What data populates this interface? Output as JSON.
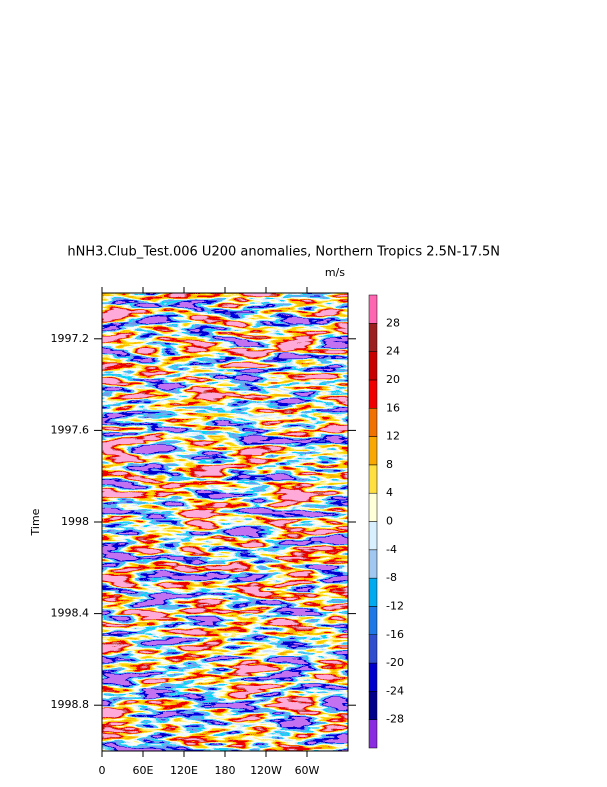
{
  "chart_data": {
    "type": "hovmoller",
    "title": "hNH3.Club_Test.006 U200 anomalies, Northern Tropics 2.5N-17.5N",
    "units": "m/s",
    "y_label": "Time",
    "xlim": [
      0,
      360
    ],
    "xticks": [
      0,
      {
        "value": 60,
        "label": "60E"
      },
      {
        "value": 120,
        "label": "120E"
      },
      {
        "value": 180,
        "label": "180"
      },
      {
        "value": 240,
        "label": "120W"
      },
      {
        "value": 300,
        "label": "60W"
      }
    ],
    "ylim": [
      1997.0,
      1999.0
    ],
    "yticks": [
      1997.2,
      1997.6,
      1998.0,
      1998.4,
      1998.8
    ],
    "colorbar": {
      "levels": [
        -28,
        -24,
        -20,
        -16,
        -12,
        -8,
        -4,
        0,
        4,
        8,
        12,
        16,
        20,
        24,
        28
      ],
      "colors": [
        "#8a2be2",
        "#00008b",
        "#0000cd",
        "#2f4fcf",
        "#1e78e6",
        "#00aaee",
        "#a0c8f0",
        "#d8f0ff",
        "#ffffd8",
        "#ffe040",
        "#f8a800",
        "#f07000",
        "#f00000",
        "#c80000",
        "#9c2020",
        "#ff66b2"
      ]
    }
  }
}
